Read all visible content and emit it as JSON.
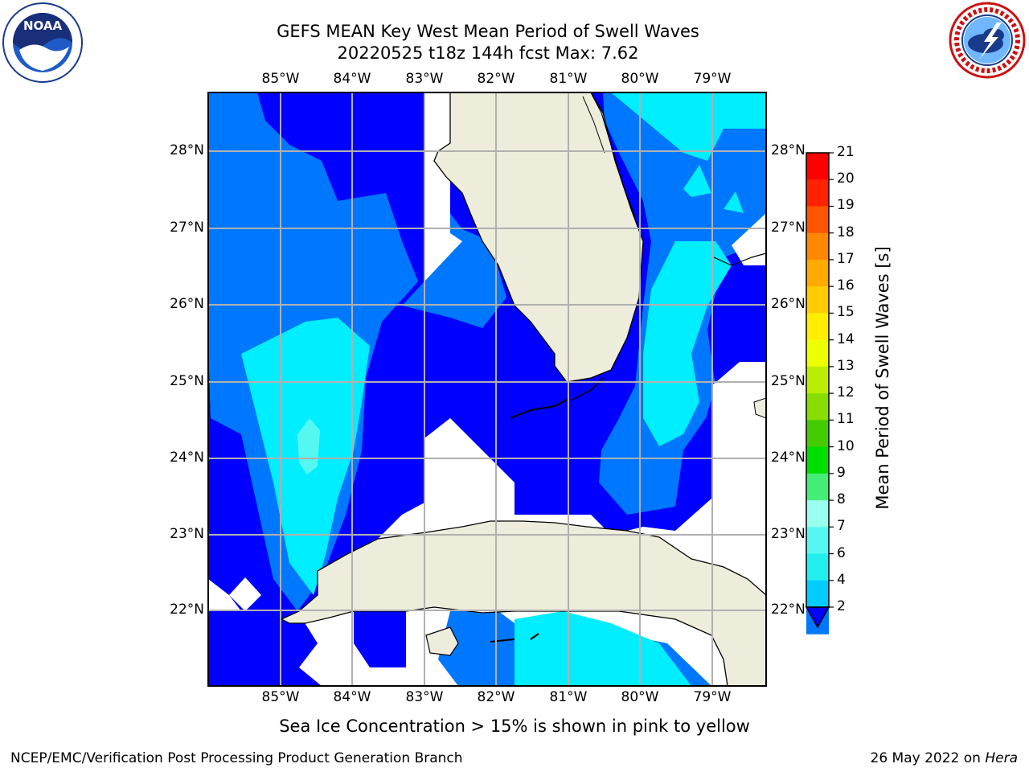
{
  "title": {
    "line1": "GEFS MEAN Key West Mean Period of Swell Waves",
    "line2": "20220525 t18z 144h fcst   Max: 7.62"
  },
  "map": {
    "lon_labels": [
      "85°W",
      "84°W",
      "83°W",
      "82°W",
      "81°W",
      "80°W",
      "79°W"
    ],
    "lat_labels": [
      "28°N",
      "27°N",
      "26°N",
      "25°N",
      "24°N",
      "23°N",
      "22°N"
    ],
    "colors": {
      "land": "#eeeddc",
      "no_data": "#ffffff",
      "grid": "#b0b0b0",
      "coast": "#000000"
    }
  },
  "colorbar": {
    "label": "Mean Period of Swell Waves [s]",
    "ticks": [
      "2",
      "4",
      "6",
      "7",
      "8",
      "9",
      "10",
      "11",
      "12",
      "13",
      "14",
      "15",
      "16",
      "17",
      "18",
      "19",
      "20",
      "21"
    ],
    "colors": [
      "#0000ff",
      "#0077ff",
      "#00ccff",
      "#22eeee",
      "#55f8f0",
      "#99ffee",
      "#44ee77",
      "#00dd00",
      "#44cc00",
      "#88dd00",
      "#bbee00",
      "#eeff00",
      "#ffee00",
      "#ffcc00",
      "#ffaa00",
      "#ff8800",
      "#ff5500",
      "#ff2200",
      "#ff0000"
    ]
  },
  "footnote": "Sea Ice Concentration > 15% is shown in pink to yellow",
  "footer": {
    "left": "NCEP/EMC/Verification Post Processing Product Generation Branch",
    "right_prefix": "26 May 2022 on ",
    "right_machine": "Hera"
  },
  "logos": {
    "noaa_text": "NOAA",
    "noaa_ring": "NATIONAL OCEANIC AND ATMOSPHERIC ADMINISTRATION · U.S. DEPARTMENT OF COMMERCE",
    "nws_ring": "NATIONAL WEATHER SERVICE"
  }
}
